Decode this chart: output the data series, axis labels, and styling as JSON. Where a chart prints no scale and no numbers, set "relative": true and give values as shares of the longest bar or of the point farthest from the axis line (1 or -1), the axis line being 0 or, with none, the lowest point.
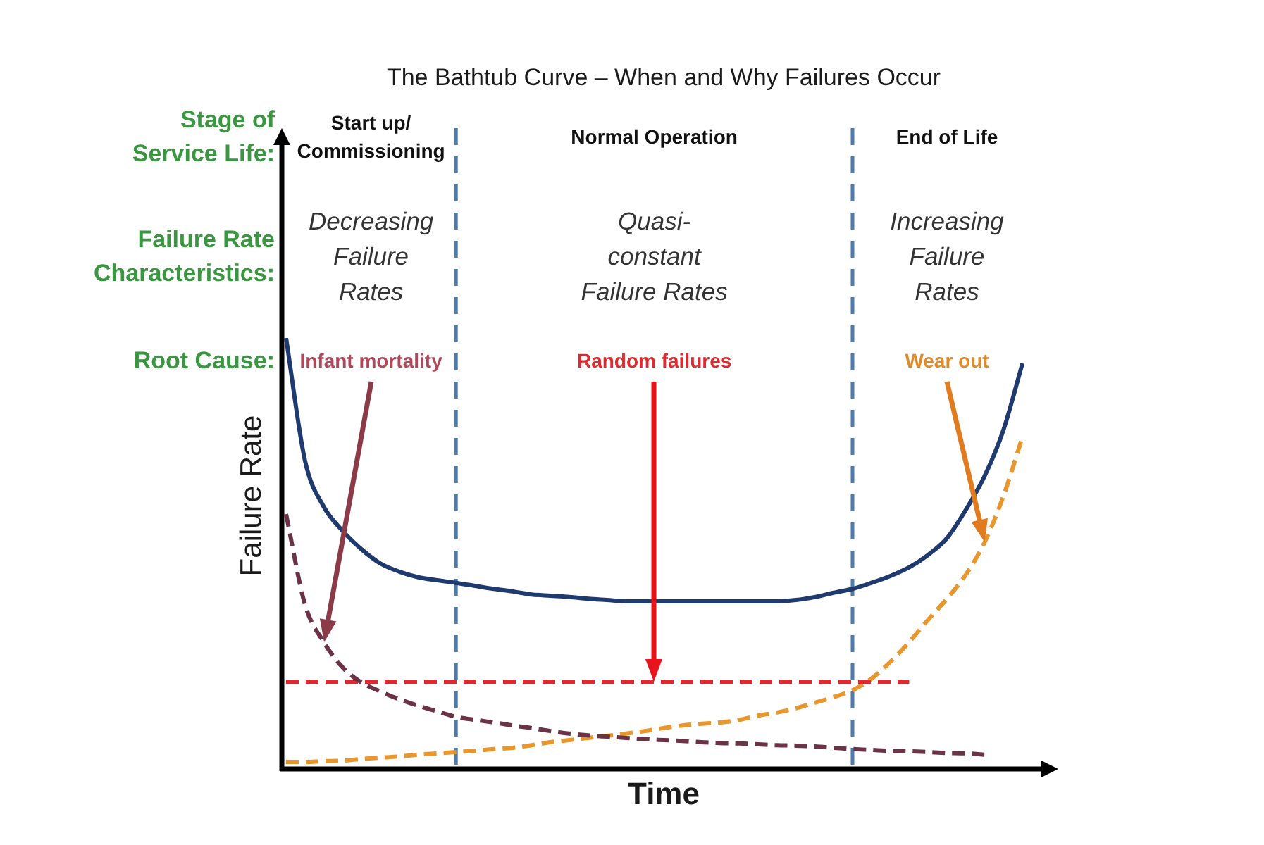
{
  "chart_data": {
    "type": "line",
    "title": "The Bathtub Curve – When and Why Failures Occur",
    "xlabel": "Time",
    "ylabel": "Failure Rate",
    "annotations": [
      "Stage of Service Life:",
      "Start up/ Commissioning",
      "Normal Operation",
      "End of Life",
      "Failure Rate Characteristics:",
      "Decreasing Failure Rates",
      "Quasi-constant Failure Rates",
      "Increasing Failure Rates",
      "Root Cause:",
      "Infant mortality",
      "Random failures",
      "Wear out"
    ],
    "categories": [
      null,
      null,
      null,
      null,
      null,
      null,
      null,
      null,
      null,
      null,
      null,
      null,
      null,
      null,
      null,
      null,
      null,
      null,
      null,
      null,
      null,
      null,
      null,
      null,
      null,
      null,
      null,
      null,
      null,
      null,
      null,
      null,
      null,
      null,
      null,
      null,
      null,
      null,
      null,
      null,
      null
    ],
    "series": [
      {
        "color": "#1f3a6f",
        "line_style": "solid",
        "values": [
          1.0,
          0.715,
          0.607,
          0.551,
          0.508,
          0.475,
          0.456,
          0.443,
          0.436,
          0.43,
          0.423,
          0.416,
          0.41,
          0.403,
          0.4,
          0.397,
          0.393,
          0.39,
          0.387,
          0.387,
          0.387,
          0.387,
          0.387,
          0.387,
          0.387,
          0.387,
          0.387,
          0.39,
          0.397,
          0.407,
          0.416,
          0.43,
          0.446,
          0.466,
          0.495,
          0.534,
          0.6,
          0.679,
          0.787,
          0.941,
          null
        ]
      },
      {
        "color": "#6b3346",
        "line_style": "dashed",
        "values": [
          0.59,
          0.38,
          0.292,
          0.233,
          0.198,
          0.177,
          0.159,
          0.144,
          0.131,
          0.118,
          0.111,
          0.105,
          0.098,
          0.092,
          0.085,
          0.079,
          0.075,
          0.072,
          0.069,
          0.066,
          0.064,
          0.062,
          0.059,
          0.057,
          0.056,
          0.054,
          0.052,
          0.051,
          0.049,
          0.046,
          0.043,
          0.041,
          0.039,
          0.038,
          0.036,
          0.034,
          0.033,
          0.03,
          null,
          null,
          null
        ]
      },
      {
        "color": "#e8242c",
        "line_style": "dashed",
        "values": [
          0.2,
          0.2,
          0.2,
          0.2,
          0.2,
          0.2,
          0.2,
          0.2,
          0.2,
          0.2,
          0.2,
          0.2,
          0.2,
          0.2,
          0.2,
          0.2,
          0.2,
          0.2,
          0.2,
          0.2,
          0.2,
          0.2,
          0.2,
          0.2,
          0.2,
          0.2,
          0.2,
          0.2,
          0.2,
          0.2,
          0.2,
          0.2,
          0.2,
          0.2,
          null,
          null,
          null,
          null,
          null,
          null,
          null
        ]
      },
      {
        "color": "#e8962e",
        "line_style": "dashed",
        "values": [
          0.013,
          0.013,
          0.015,
          0.016,
          0.02,
          0.023,
          0.026,
          0.03,
          0.033,
          0.036,
          0.039,
          0.043,
          0.046,
          0.052,
          0.059,
          0.064,
          0.069,
          0.074,
          0.079,
          0.085,
          0.092,
          0.098,
          0.102,
          0.105,
          0.111,
          0.121,
          0.128,
          0.138,
          0.151,
          0.164,
          0.18,
          0.207,
          0.246,
          0.292,
          0.344,
          0.393,
          0.449,
          0.525,
          0.633,
          0.77,
          null
        ]
      }
    ],
    "relative": true,
    "legend": false,
    "grid": false,
    "marker": "none",
    "tick_labels": false
  }
}
